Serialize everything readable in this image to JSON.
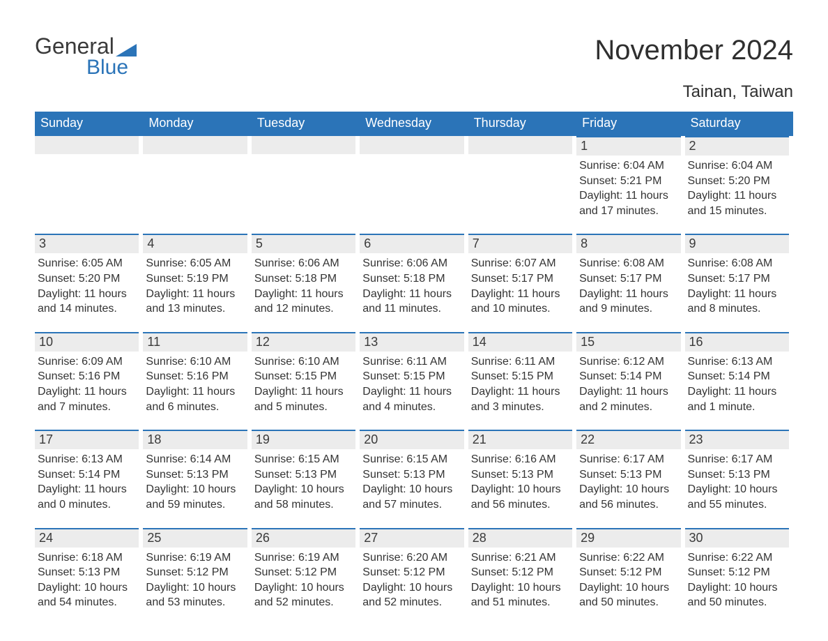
{
  "logo": {
    "general": "General",
    "blue": "Blue"
  },
  "title": "November 2024",
  "location": "Tainan, Taiwan",
  "colors": {
    "header_bg": "#2b74b8",
    "header_text": "#ffffff",
    "daynum_bg": "#ececec",
    "daynum_border": "#2b74b8",
    "text": "#333333",
    "logo_blue": "#2b74b8",
    "logo_text": "#3a3a3a",
    "page_bg": "#ffffff"
  },
  "typography": {
    "title_fontsize": 40,
    "location_fontsize": 24,
    "dow_fontsize": 18,
    "daynum_fontsize": 18,
    "body_fontsize": 16
  },
  "days_of_week": [
    "Sunday",
    "Monday",
    "Tuesday",
    "Wednesday",
    "Thursday",
    "Friday",
    "Saturday"
  ],
  "weeks": [
    [
      null,
      null,
      null,
      null,
      null,
      {
        "num": "1",
        "sunrise": "Sunrise: 6:04 AM",
        "sunset": "Sunset: 5:21 PM",
        "daylight1": "Daylight: 11 hours",
        "daylight2": "and 17 minutes."
      },
      {
        "num": "2",
        "sunrise": "Sunrise: 6:04 AM",
        "sunset": "Sunset: 5:20 PM",
        "daylight1": "Daylight: 11 hours",
        "daylight2": "and 15 minutes."
      }
    ],
    [
      {
        "num": "3",
        "sunrise": "Sunrise: 6:05 AM",
        "sunset": "Sunset: 5:20 PM",
        "daylight1": "Daylight: 11 hours",
        "daylight2": "and 14 minutes."
      },
      {
        "num": "4",
        "sunrise": "Sunrise: 6:05 AM",
        "sunset": "Sunset: 5:19 PM",
        "daylight1": "Daylight: 11 hours",
        "daylight2": "and 13 minutes."
      },
      {
        "num": "5",
        "sunrise": "Sunrise: 6:06 AM",
        "sunset": "Sunset: 5:18 PM",
        "daylight1": "Daylight: 11 hours",
        "daylight2": "and 12 minutes."
      },
      {
        "num": "6",
        "sunrise": "Sunrise: 6:06 AM",
        "sunset": "Sunset: 5:18 PM",
        "daylight1": "Daylight: 11 hours",
        "daylight2": "and 11 minutes."
      },
      {
        "num": "7",
        "sunrise": "Sunrise: 6:07 AM",
        "sunset": "Sunset: 5:17 PM",
        "daylight1": "Daylight: 11 hours",
        "daylight2": "and 10 minutes."
      },
      {
        "num": "8",
        "sunrise": "Sunrise: 6:08 AM",
        "sunset": "Sunset: 5:17 PM",
        "daylight1": "Daylight: 11 hours",
        "daylight2": "and 9 minutes."
      },
      {
        "num": "9",
        "sunrise": "Sunrise: 6:08 AM",
        "sunset": "Sunset: 5:17 PM",
        "daylight1": "Daylight: 11 hours",
        "daylight2": "and 8 minutes."
      }
    ],
    [
      {
        "num": "10",
        "sunrise": "Sunrise: 6:09 AM",
        "sunset": "Sunset: 5:16 PM",
        "daylight1": "Daylight: 11 hours",
        "daylight2": "and 7 minutes."
      },
      {
        "num": "11",
        "sunrise": "Sunrise: 6:10 AM",
        "sunset": "Sunset: 5:16 PM",
        "daylight1": "Daylight: 11 hours",
        "daylight2": "and 6 minutes."
      },
      {
        "num": "12",
        "sunrise": "Sunrise: 6:10 AM",
        "sunset": "Sunset: 5:15 PM",
        "daylight1": "Daylight: 11 hours",
        "daylight2": "and 5 minutes."
      },
      {
        "num": "13",
        "sunrise": "Sunrise: 6:11 AM",
        "sunset": "Sunset: 5:15 PM",
        "daylight1": "Daylight: 11 hours",
        "daylight2": "and 4 minutes."
      },
      {
        "num": "14",
        "sunrise": "Sunrise: 6:11 AM",
        "sunset": "Sunset: 5:15 PM",
        "daylight1": "Daylight: 11 hours",
        "daylight2": "and 3 minutes."
      },
      {
        "num": "15",
        "sunrise": "Sunrise: 6:12 AM",
        "sunset": "Sunset: 5:14 PM",
        "daylight1": "Daylight: 11 hours",
        "daylight2": "and 2 minutes."
      },
      {
        "num": "16",
        "sunrise": "Sunrise: 6:13 AM",
        "sunset": "Sunset: 5:14 PM",
        "daylight1": "Daylight: 11 hours",
        "daylight2": "and 1 minute."
      }
    ],
    [
      {
        "num": "17",
        "sunrise": "Sunrise: 6:13 AM",
        "sunset": "Sunset: 5:14 PM",
        "daylight1": "Daylight: 11 hours",
        "daylight2": "and 0 minutes."
      },
      {
        "num": "18",
        "sunrise": "Sunrise: 6:14 AM",
        "sunset": "Sunset: 5:13 PM",
        "daylight1": "Daylight: 10 hours",
        "daylight2": "and 59 minutes."
      },
      {
        "num": "19",
        "sunrise": "Sunrise: 6:15 AM",
        "sunset": "Sunset: 5:13 PM",
        "daylight1": "Daylight: 10 hours",
        "daylight2": "and 58 minutes."
      },
      {
        "num": "20",
        "sunrise": "Sunrise: 6:15 AM",
        "sunset": "Sunset: 5:13 PM",
        "daylight1": "Daylight: 10 hours",
        "daylight2": "and 57 minutes."
      },
      {
        "num": "21",
        "sunrise": "Sunrise: 6:16 AM",
        "sunset": "Sunset: 5:13 PM",
        "daylight1": "Daylight: 10 hours",
        "daylight2": "and 56 minutes."
      },
      {
        "num": "22",
        "sunrise": "Sunrise: 6:17 AM",
        "sunset": "Sunset: 5:13 PM",
        "daylight1": "Daylight: 10 hours",
        "daylight2": "and 56 minutes."
      },
      {
        "num": "23",
        "sunrise": "Sunrise: 6:17 AM",
        "sunset": "Sunset: 5:13 PM",
        "daylight1": "Daylight: 10 hours",
        "daylight2": "and 55 minutes."
      }
    ],
    [
      {
        "num": "24",
        "sunrise": "Sunrise: 6:18 AM",
        "sunset": "Sunset: 5:13 PM",
        "daylight1": "Daylight: 10 hours",
        "daylight2": "and 54 minutes."
      },
      {
        "num": "25",
        "sunrise": "Sunrise: 6:19 AM",
        "sunset": "Sunset: 5:12 PM",
        "daylight1": "Daylight: 10 hours",
        "daylight2": "and 53 minutes."
      },
      {
        "num": "26",
        "sunrise": "Sunrise: 6:19 AM",
        "sunset": "Sunset: 5:12 PM",
        "daylight1": "Daylight: 10 hours",
        "daylight2": "and 52 minutes."
      },
      {
        "num": "27",
        "sunrise": "Sunrise: 6:20 AM",
        "sunset": "Sunset: 5:12 PM",
        "daylight1": "Daylight: 10 hours",
        "daylight2": "and 52 minutes."
      },
      {
        "num": "28",
        "sunrise": "Sunrise: 6:21 AM",
        "sunset": "Sunset: 5:12 PM",
        "daylight1": "Daylight: 10 hours",
        "daylight2": "and 51 minutes."
      },
      {
        "num": "29",
        "sunrise": "Sunrise: 6:22 AM",
        "sunset": "Sunset: 5:12 PM",
        "daylight1": "Daylight: 10 hours",
        "daylight2": "and 50 minutes."
      },
      {
        "num": "30",
        "sunrise": "Sunrise: 6:22 AM",
        "sunset": "Sunset: 5:12 PM",
        "daylight1": "Daylight: 10 hours",
        "daylight2": "and 50 minutes."
      }
    ]
  ]
}
